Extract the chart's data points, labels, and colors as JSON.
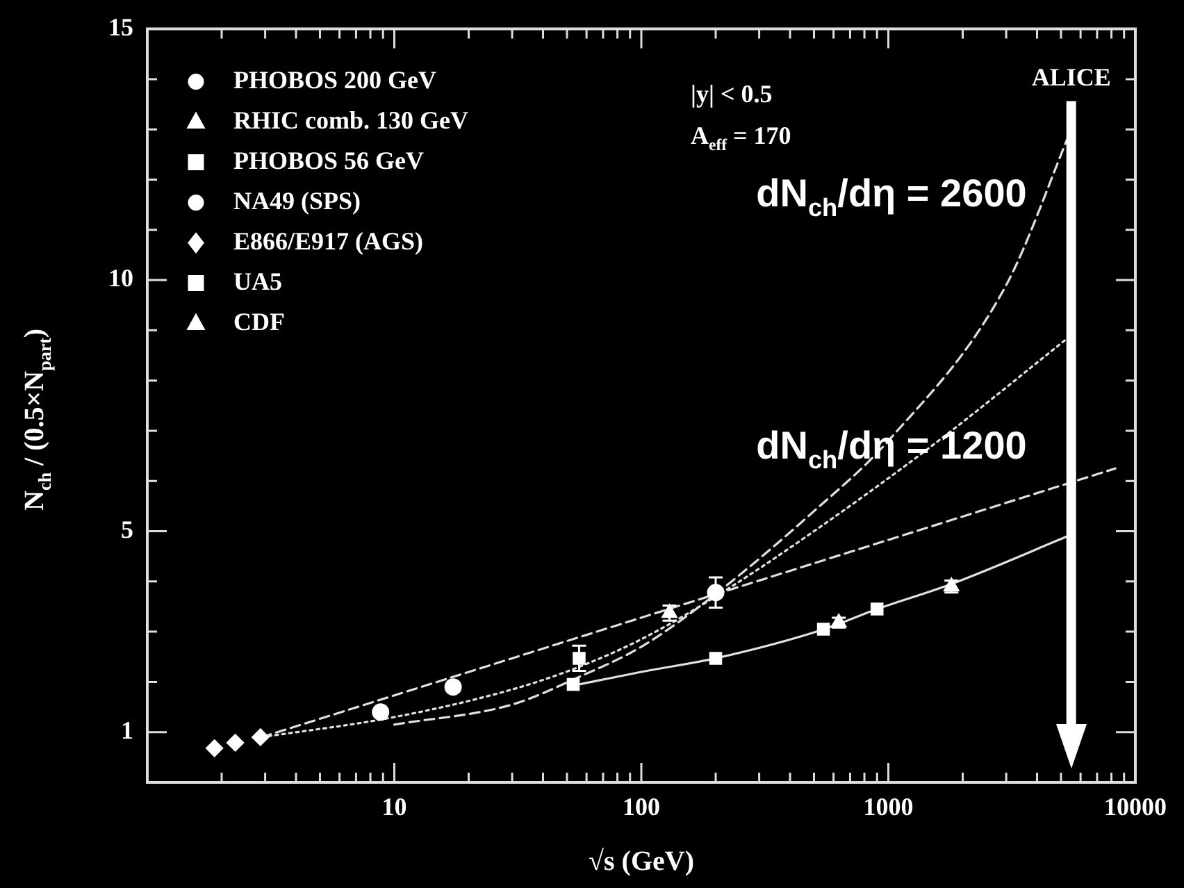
{
  "chart_data": {
    "type": "scatter",
    "xlabel": "√s (GeV)",
    "ylabel": "N$_{ch}$ / (0.5×N$_{part}$)",
    "log": "x",
    "xlim": [
      1,
      10000
    ],
    "xticks": [
      {
        "value": 2,
        "label": null
      },
      {
        "value": 3,
        "label": null
      },
      {
        "value": 4,
        "label": null
      },
      {
        "value": 5,
        "label": null
      },
      {
        "value": 6,
        "label": null
      },
      {
        "value": 7,
        "label": null
      },
      {
        "value": 8,
        "label": null
      },
      {
        "value": 9,
        "label": null
      },
      10,
      {
        "value": 20,
        "label": null
      },
      {
        "value": 30,
        "label": null
      },
      {
        "value": 40,
        "label": null
      },
      {
        "value": 50,
        "label": null
      },
      {
        "value": 60,
        "label": null
      },
      {
        "value": 70,
        "label": null
      },
      {
        "value": 80,
        "label": null
      },
      {
        "value": 90,
        "label": null
      },
      100,
      {
        "value": 200,
        "label": null
      },
      {
        "value": 300,
        "label": null
      },
      {
        "value": 400,
        "label": null
      },
      {
        "value": 500,
        "label": null
      },
      {
        "value": 600,
        "label": null
      },
      {
        "value": 700,
        "label": null
      },
      {
        "value": 800,
        "label": null
      },
      {
        "value": 900,
        "label": null
      },
      1000,
      {
        "value": 2000,
        "label": null
      },
      {
        "value": 3000,
        "label": null
      },
      {
        "value": 4000,
        "label": null
      },
      {
        "value": 5000,
        "label": null
      },
      {
        "value": 6000,
        "label": null
      },
      {
        "value": 7000,
        "label": null
      },
      {
        "value": 8000,
        "label": null
      },
      {
        "value": 9000,
        "label": null
      },
      10000
    ],
    "ylim": [
      0,
      15
    ],
    "yticks": [
      1,
      {
        "value": 2,
        "label": null
      },
      {
        "value": 3,
        "label": null
      },
      {
        "value": 4,
        "label": null
      },
      5,
      {
        "value": 6,
        "label": null
      },
      {
        "value": 7,
        "label": null
      },
      {
        "value": 8,
        "label": null
      },
      {
        "value": 9,
        "label": null
      },
      10,
      {
        "value": 11,
        "label": null
      },
      {
        "value": 12,
        "label": null
      },
      {
        "value": 13,
        "label": null
      },
      {
        "value": 14,
        "label": null
      },
      15
    ],
    "grid": false,
    "legend": "top left",
    "series": [
      {
        "name": "PHOBOS 200 GeV",
        "marker": "circle",
        "color": "#ffffff",
        "x": [
          200
        ],
        "values": [
          3.78
        ],
        "errors": [
          0.3
        ]
      },
      {
        "name": "RHIC comb. 130 GeV",
        "marker": "triangle",
        "color": "#ffffff",
        "x": [
          130
        ],
        "values": [
          3.37
        ],
        "errors": [
          0.15
        ]
      },
      {
        "name": "PHOBOS 56 GeV",
        "marker": "square",
        "color": "#ffffff",
        "x": [
          56
        ],
        "values": [
          2.47
        ],
        "errors": [
          0.25
        ]
      },
      {
        "name": "NA49 (SPS)",
        "marker": "circle",
        "color": "#ffffff",
        "x": [
          8.8,
          17.3
        ],
        "values": [
          1.4,
          1.9
        ]
      },
      {
        "name": "E866/E917 (AGS)",
        "marker": "diamond",
        "color": "#ffffff",
        "x": [
          1.87,
          2.27,
          2.87
        ],
        "values": [
          0.68,
          0.79,
          0.9
        ]
      },
      {
        "name": "UA5",
        "marker": "square",
        "color": "#ffffff",
        "x": [
          53,
          200,
          546,
          900
        ],
        "values": [
          1.95,
          2.47,
          3.05,
          3.45
        ]
      },
      {
        "name": "CDF",
        "marker": "triangle",
        "color": "#ffffff",
        "x": [
          630,
          1800
        ],
        "values": [
          3.18,
          3.9
        ],
        "errors": [
          0.1,
          0.12
        ]
      },
      {
        "type": "line",
        "line_style": "solid",
        "color": "#e0e0e0",
        "x": [
          56,
          100,
          200,
          550,
          900,
          1800,
          5500
        ],
        "values": [
          1.95,
          2.2,
          2.47,
          3.05,
          3.45,
          3.95,
          4.93
        ]
      },
      {
        "type": "line",
        "line_style": "dashed",
        "color": "#e0e0e0",
        "x": [
          2.9,
          8300
        ],
        "values": [
          0.9,
          6.25
        ]
      },
      {
        "type": "line",
        "line_style": "dotted",
        "color": "#e0e0e0",
        "x": [
          2.9,
          10,
          30,
          56,
          100,
          200,
          500,
          1500,
          5500
        ],
        "values": [
          0.9,
          1.3,
          1.85,
          2.3,
          2.85,
          3.7,
          5.0,
          6.7,
          8.9
        ]
      },
      {
        "type": "line",
        "line_style": "dashed",
        "color": "#e0e0e0",
        "x": [
          10,
          30,
          56,
          100,
          200,
          500,
          1000,
          3000,
          5500
        ],
        "values": [
          1.15,
          1.55,
          2.1,
          2.7,
          3.75,
          5.4,
          6.8,
          9.9,
          13.0
        ]
      }
    ],
    "ref_lines": [
      {
        "axis": "x",
        "value": 5500,
        "label": "ALICE",
        "color": "#ffffff"
      }
    ],
    "annotations": [
      "|y| < 0.5",
      "A$_{eff}$ = 170",
      {
        "text": "dN$_{ch}$/dη = 2600",
        "x": 5500,
        "y": 13
      },
      {
        "text": "dN$_{ch}$/dη = 1200",
        "x": 5500,
        "y": 6
      }
    ]
  }
}
